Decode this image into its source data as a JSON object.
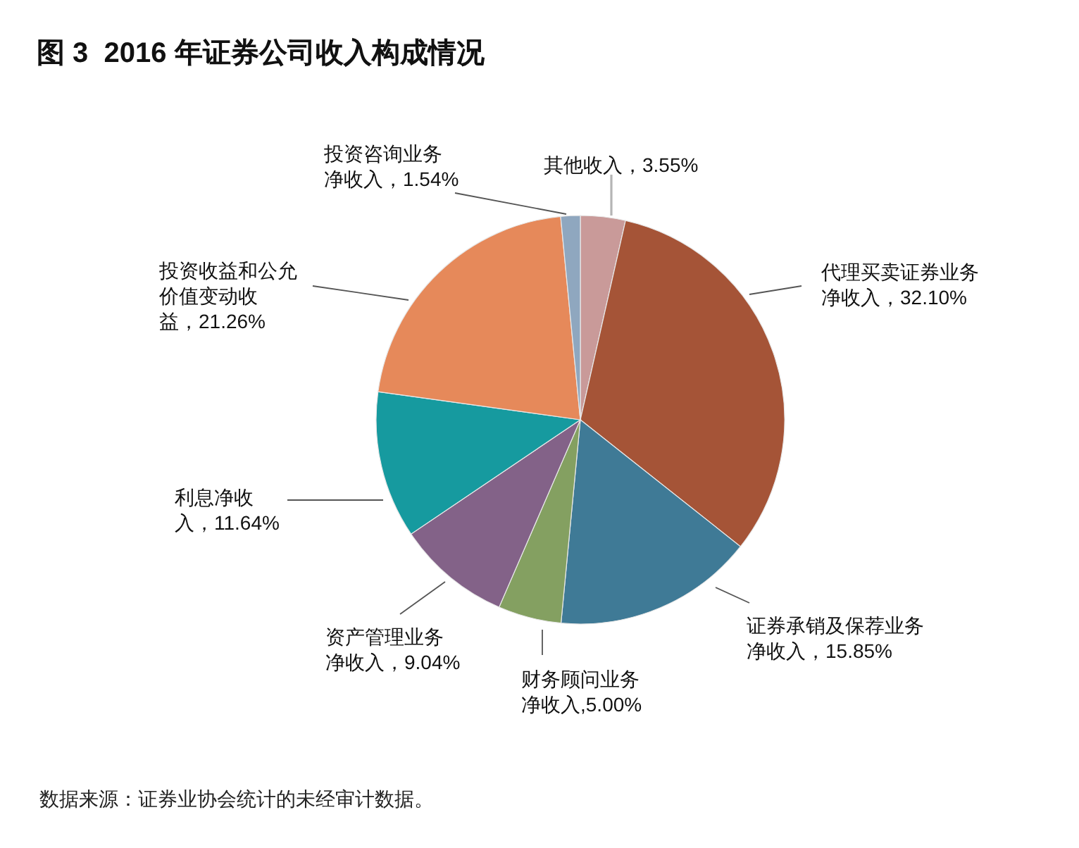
{
  "chart_data": {
    "type": "pie",
    "title": "图 3  2016 年证券公司收入构成情况",
    "categories": [
      "其他收入",
      "代理买卖证券业务净收入",
      "证券承销及保荐业务净收入",
      "财务顾问业务净收入",
      "资产管理业务净收入",
      "利息净收入",
      "投资收益和公允价值变动收益",
      "投资咨询业务净收入"
    ],
    "values": [
      3.55,
      32.1,
      15.85,
      5.0,
      9.04,
      11.64,
      21.26,
      1.54
    ],
    "colors": [
      "#c99a99",
      "#a55437",
      "#3f7a96",
      "#84a061",
      "#836288",
      "#169a9f",
      "#e6895a",
      "#8fa7bf"
    ],
    "value_labels": [
      "3.55%",
      "32.10%",
      "15.85%",
      "5.00%",
      "9.04%",
      "11.64%",
      "21.26%",
      "1.54%"
    ],
    "annotations": [
      "数据来源：证券业协会统计的未经审计数据。"
    ]
  }
}
